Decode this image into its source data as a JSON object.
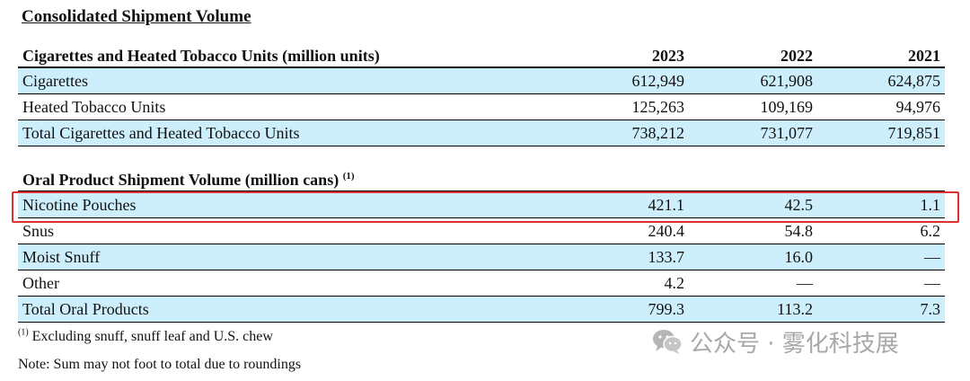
{
  "title": "Consolidated Shipment Volume",
  "cigarettes_section": {
    "header": "Cigarettes and Heated Tobacco Units (million units)",
    "years": [
      "2023",
      "2022",
      "2021"
    ],
    "rows": [
      {
        "label": "Cigarettes",
        "values": [
          "612,949",
          "621,908",
          "624,875"
        ]
      },
      {
        "label": "Heated Tobacco Units",
        "values": [
          "125,263",
          "109,169",
          "94,976"
        ]
      },
      {
        "label": "Total Cigarettes and Heated Tobacco Units",
        "values": [
          "738,212",
          "731,077",
          "719,851"
        ]
      }
    ]
  },
  "oral_section": {
    "header": "Oral Product Shipment Volume (million cans)",
    "header_marker": "(1)",
    "rows": [
      {
        "label": "Nicotine Pouches",
        "values": [
          "421.1",
          "42.5",
          "1.1"
        ]
      },
      {
        "label": "Snus",
        "values": [
          "240.4",
          "54.8",
          "6.2"
        ]
      },
      {
        "label": "Moist Snuff",
        "values": [
          "133.7",
          "16.0",
          "—"
        ]
      },
      {
        "label": "Other",
        "values": [
          "4.2",
          "—",
          "—"
        ]
      },
      {
        "label": "Total Oral Products",
        "values": [
          "799.3",
          "113.2",
          "7.3"
        ]
      }
    ]
  },
  "footnote": {
    "marker": "(1)",
    "text": " Excluding snuff, snuff leaf and U.S. chew"
  },
  "note": "Note: Sum may not foot to total due to roundings",
  "watermark": {
    "text": "公众号 · 雾化科技展",
    "icon": "wechat-icon"
  },
  "colors": {
    "row_shade": "#cdeffc",
    "highlight_border": "#e03030",
    "watermark": "#a8a8a8"
  }
}
